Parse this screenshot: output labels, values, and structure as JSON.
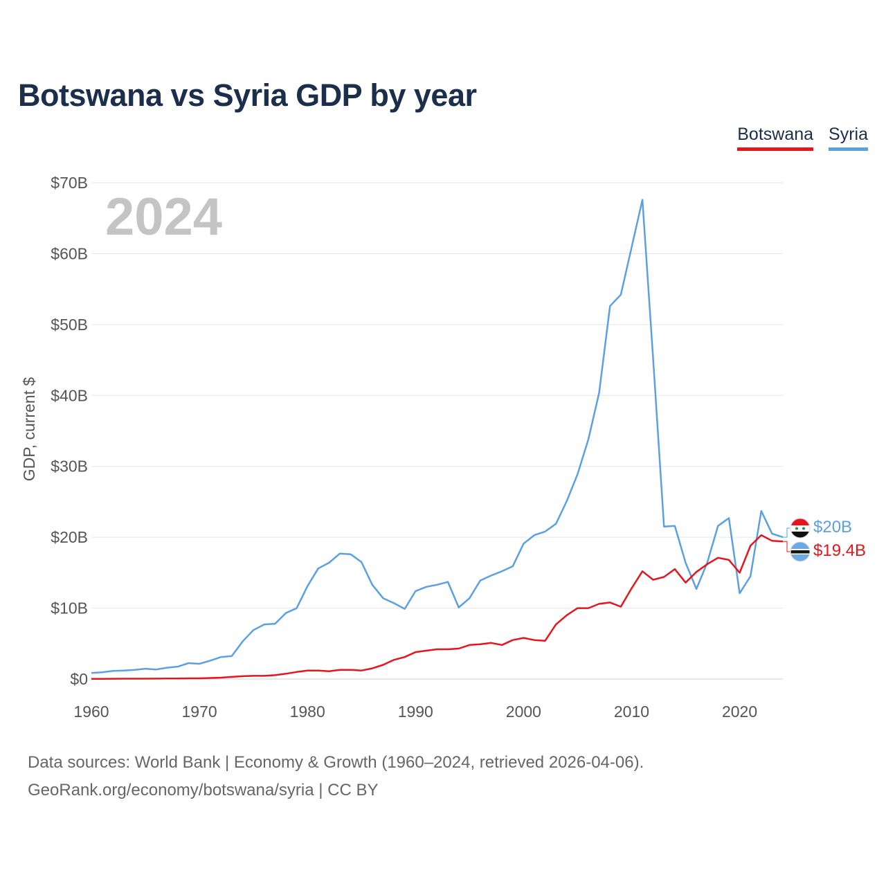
{
  "chart_data": {
    "type": "line",
    "title": "Botswana vs Syria GDP by year",
    "ylabel": "GDP, current $",
    "xlabel": "",
    "year_label": "2024",
    "ylim": [
      0,
      70
    ],
    "xlim": [
      1960,
      2024
    ],
    "y_ticks": [
      {
        "value": 0,
        "label": "$0"
      },
      {
        "value": 10,
        "label": "$10B"
      },
      {
        "value": 20,
        "label": "$20B"
      },
      {
        "value": 30,
        "label": "$30B"
      },
      {
        "value": 40,
        "label": "$40B"
      },
      {
        "value": 50,
        "label": "$50B"
      },
      {
        "value": 60,
        "label": "$60B"
      },
      {
        "value": 70,
        "label": "$70B"
      }
    ],
    "x_ticks": [
      1960,
      1970,
      1980,
      1990,
      2000,
      2010,
      2020
    ],
    "legend": [
      {
        "name": "Botswana",
        "color": "#e8141c"
      },
      {
        "name": "Syria",
        "color": "#5aa0e2"
      }
    ],
    "series": [
      {
        "name": "Botswana",
        "color": "#e8141c",
        "end_label": "$19.4B",
        "points": [
          [
            1960,
            0.03
          ],
          [
            1961,
            0.03
          ],
          [
            1962,
            0.04
          ],
          [
            1963,
            0.05
          ],
          [
            1964,
            0.05
          ],
          [
            1965,
            0.05
          ],
          [
            1966,
            0.06
          ],
          [
            1967,
            0.07
          ],
          [
            1968,
            0.08
          ],
          [
            1969,
            0.1
          ],
          [
            1970,
            0.1
          ],
          [
            1971,
            0.15
          ],
          [
            1972,
            0.2
          ],
          [
            1973,
            0.3
          ],
          [
            1974,
            0.4
          ],
          [
            1975,
            0.45
          ],
          [
            1976,
            0.45
          ],
          [
            1977,
            0.55
          ],
          [
            1978,
            0.75
          ],
          [
            1979,
            1.0
          ],
          [
            1980,
            1.2
          ],
          [
            1981,
            1.2
          ],
          [
            1982,
            1.1
          ],
          [
            1983,
            1.3
          ],
          [
            1984,
            1.3
          ],
          [
            1985,
            1.2
          ],
          [
            1986,
            1.5
          ],
          [
            1987,
            2.0
          ],
          [
            1988,
            2.7
          ],
          [
            1989,
            3.1
          ],
          [
            1990,
            3.8
          ],
          [
            1991,
            4.0
          ],
          [
            1992,
            4.2
          ],
          [
            1993,
            4.2
          ],
          [
            1994,
            4.3
          ],
          [
            1995,
            4.8
          ],
          [
            1996,
            4.9
          ],
          [
            1997,
            5.1
          ],
          [
            1998,
            4.8
          ],
          [
            1999,
            5.5
          ],
          [
            2000,
            5.8
          ],
          [
            2001,
            5.5
          ],
          [
            2002,
            5.4
          ],
          [
            2003,
            7.7
          ],
          [
            2004,
            9.0
          ],
          [
            2005,
            10.0
          ],
          [
            2006,
            10.0
          ],
          [
            2007,
            10.6
          ],
          [
            2008,
            10.8
          ],
          [
            2009,
            10.2
          ],
          [
            2010,
            12.8
          ],
          [
            2011,
            15.2
          ],
          [
            2012,
            14.0
          ],
          [
            2013,
            14.4
          ],
          [
            2014,
            15.5
          ],
          [
            2015,
            13.6
          ],
          [
            2016,
            15.1
          ],
          [
            2017,
            16.2
          ],
          [
            2018,
            17.1
          ],
          [
            2019,
            16.8
          ],
          [
            2020,
            15.0
          ],
          [
            2021,
            18.8
          ],
          [
            2022,
            20.3
          ],
          [
            2023,
            19.5
          ],
          [
            2024,
            19.4
          ]
        ]
      },
      {
        "name": "Syria",
        "color": "#5aa0e2",
        "end_label": "$20B",
        "points": [
          [
            1960,
            0.85
          ],
          [
            1961,
            0.95
          ],
          [
            1962,
            1.15
          ],
          [
            1963,
            1.2
          ],
          [
            1964,
            1.3
          ],
          [
            1965,
            1.45
          ],
          [
            1966,
            1.35
          ],
          [
            1967,
            1.6
          ],
          [
            1968,
            1.75
          ],
          [
            1969,
            2.25
          ],
          [
            1970,
            2.15
          ],
          [
            1971,
            2.6
          ],
          [
            1972,
            3.1
          ],
          [
            1973,
            3.25
          ],
          [
            1974,
            5.3
          ],
          [
            1975,
            6.9
          ],
          [
            1976,
            7.7
          ],
          [
            1977,
            7.8
          ],
          [
            1978,
            9.3
          ],
          [
            1979,
            10.0
          ],
          [
            1980,
            13.1
          ],
          [
            1981,
            15.6
          ],
          [
            1982,
            16.4
          ],
          [
            1983,
            17.7
          ],
          [
            1984,
            17.6
          ],
          [
            1985,
            16.5
          ],
          [
            1986,
            13.3
          ],
          [
            1987,
            11.4
          ],
          [
            1988,
            10.7
          ],
          [
            1989,
            9.9
          ],
          [
            1990,
            12.4
          ],
          [
            1991,
            13.0
          ],
          [
            1992,
            13.3
          ],
          [
            1993,
            13.7
          ],
          [
            1994,
            10.1
          ],
          [
            1995,
            11.4
          ],
          [
            1996,
            13.9
          ],
          [
            1997,
            14.6
          ],
          [
            1998,
            15.2
          ],
          [
            1999,
            15.9
          ],
          [
            2000,
            19.1
          ],
          [
            2001,
            20.3
          ],
          [
            2002,
            20.8
          ],
          [
            2003,
            21.9
          ],
          [
            2004,
            25.1
          ],
          [
            2005,
            28.9
          ],
          [
            2006,
            33.8
          ],
          [
            2007,
            40.4
          ],
          [
            2008,
            52.6
          ],
          [
            2009,
            54.2
          ],
          [
            2010,
            60.9
          ],
          [
            2011,
            67.6
          ],
          [
            2012,
            45.0
          ],
          [
            2013,
            21.5
          ],
          [
            2014,
            21.6
          ],
          [
            2015,
            16.4
          ],
          [
            2016,
            12.7
          ],
          [
            2017,
            16.4
          ],
          [
            2018,
            21.6
          ],
          [
            2019,
            22.7
          ],
          [
            2020,
            12.1
          ],
          [
            2021,
            14.5
          ],
          [
            2022,
            23.7
          ],
          [
            2023,
            20.5
          ],
          [
            2024,
            20.0
          ]
        ]
      }
    ]
  },
  "footer": {
    "sources": "Data sources: World Bank | Economy & Growth (1960–2024, retrieved 2026-04-06).",
    "link": "GeoRank.org/economy/botswana/syria | CC BY"
  }
}
